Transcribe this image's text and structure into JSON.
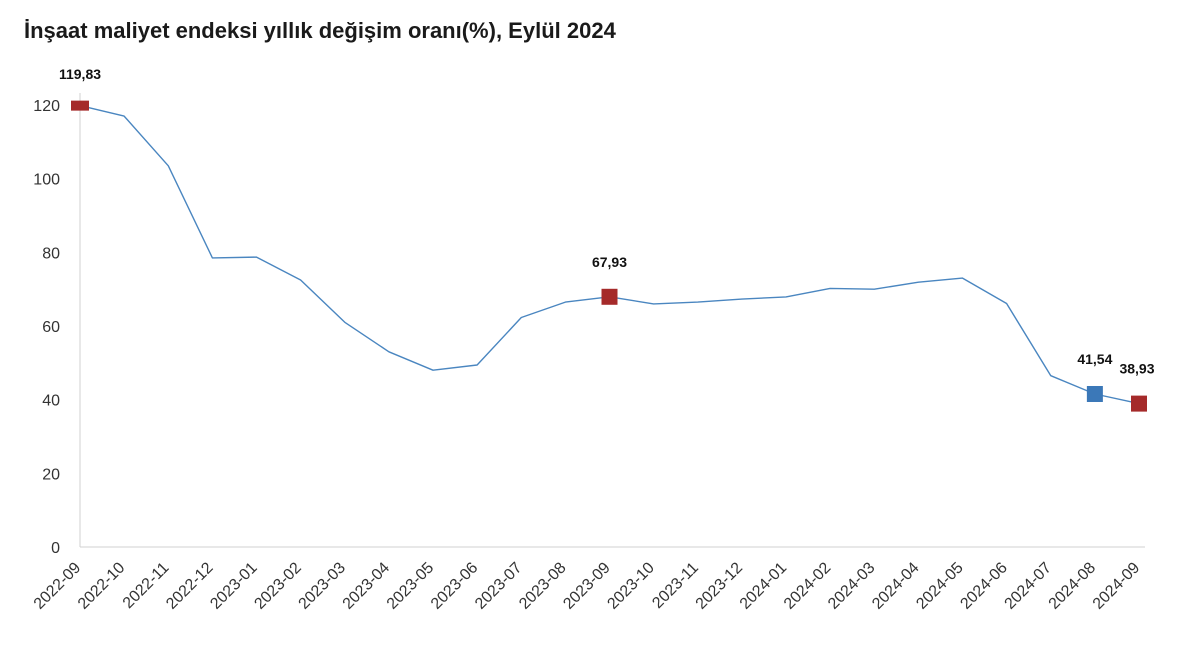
{
  "chart_data": {
    "type": "line",
    "title": "İnşaat maliyet endeksi yıllık değişim oranı(%), Eylül 2024",
    "xlabel": "",
    "ylabel": "",
    "ylim": [
      0,
      120
    ],
    "yticks": [
      0,
      20,
      40,
      60,
      80,
      100,
      120
    ],
    "grid": false,
    "categories": [
      "2022-09",
      "2022-10",
      "2022-11",
      "2022-12",
      "2023-01",
      "2023-02",
      "2023-03",
      "2023-04",
      "2023-05",
      "2023-06",
      "2023-07",
      "2023-08",
      "2023-09",
      "2023-10",
      "2023-11",
      "2023-12",
      "2024-01",
      "2024-02",
      "2024-03",
      "2024-04",
      "2024-05",
      "2024-06",
      "2024-07",
      "2024-08",
      "2024-09"
    ],
    "series": [
      {
        "values": [
          119.83,
          117.0,
          103.5,
          78.5,
          78.7,
          72.5,
          61.0,
          53.0,
          48.0,
          49.4,
          62.3,
          66.5,
          67.93,
          66.0,
          66.5,
          67.3,
          67.9,
          70.2,
          70.0,
          71.9,
          73.0,
          66.1,
          46.5,
          41.54,
          38.93
        ],
        "color": "#4a86c0"
      }
    ],
    "highlights": [
      {
        "index": 0,
        "label": "119,83",
        "color": "#a52a2a"
      },
      {
        "index": 12,
        "label": "67,93",
        "color": "#a52a2a"
      },
      {
        "index": 23,
        "label": "41,54",
        "color": "#3b78b8"
      },
      {
        "index": 24,
        "label": "38,93",
        "color": "#a52a2a"
      }
    ]
  }
}
